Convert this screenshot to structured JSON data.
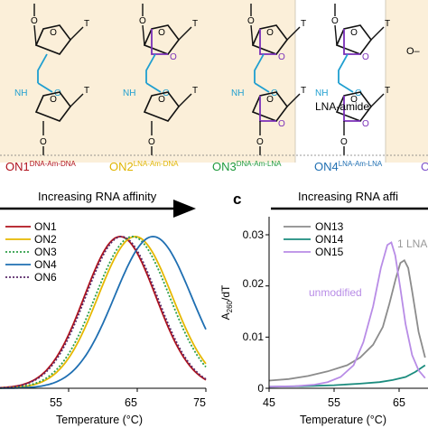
{
  "structures": {
    "base_label": "T",
    "nh": "NH",
    "o": "O",
    "lna_amide": "LNA-amide",
    "extra_fragment": "O–",
    "labels": [
      {
        "prefix": "ON1",
        "sup": "DNA-Am-DNA",
        "color": "#b0121c"
      },
      {
        "prefix": "ON2",
        "sup": "LNA-Am-DNA",
        "color": "#e0b400"
      },
      {
        "prefix": "ON3",
        "sup": "DNA-Am-LNA",
        "color": "#1f9a3c"
      },
      {
        "prefix": "ON4",
        "sup": "LNA-Am-LNA",
        "color": "#1f6fb2"
      },
      {
        "prefix": "O",
        "sup": "",
        "color": "#7b4fc9"
      }
    ],
    "colors": {
      "linker": "#1f9fd0",
      "lna_bridge": "#7a2fb8",
      "panel_bg": "#fbefd9"
    }
  },
  "panel_b": {
    "arrow_text": "Increasing RNA affinity"
  },
  "panel_c": {
    "letter": "c",
    "arrow_text": "Increasing RNA affi",
    "annotation_1lna": "1 LNA",
    "annotation_unmodified": "unmodified"
  },
  "chart_data": [
    {
      "type": "line",
      "panel": "b",
      "xlabel": "Temperature (°C)",
      "ylabel": "",
      "xlim": [
        45,
        75
      ],
      "xticks": [
        "55",
        "65",
        "75"
      ],
      "series": [
        {
          "name": "ON1",
          "color": "#b0121c",
          "dash": "",
          "peak_x": 62.5,
          "width": 5.2,
          "peak": 1.0
        },
        {
          "name": "ON2",
          "color": "#e6b800",
          "dash": "",
          "peak_x": 64.7,
          "width": 5.4,
          "peak": 1.0
        },
        {
          "name": "ON3",
          "color": "#2e9e48",
          "dash": "2,2",
          "peak_x": 64.3,
          "width": 5.4,
          "peak": 1.0
        },
        {
          "name": "ON4",
          "color": "#1f6fb2",
          "dash": "",
          "peak_x": 67.3,
          "width": 5.6,
          "peak": 1.0
        },
        {
          "name": "ON6",
          "color": "#5a2a6a",
          "dash": "2,2",
          "peak_x": 62.7,
          "width": 5.2,
          "peak": 1.0
        }
      ]
    },
    {
      "type": "line",
      "panel": "c",
      "xlabel": "Temperature (°C)",
      "ylabel": "A260/dT",
      "xlim": [
        45,
        69
      ],
      "ylim": [
        0,
        0.032
      ],
      "xticks": [
        "45",
        "55",
        "65"
      ],
      "yticks": [
        "0",
        "0.01",
        "0.02",
        "0.03"
      ],
      "series": [
        {
          "name": "ON13",
          "color": "#8c8c8c",
          "points": [
            [
              45,
              0.0015
            ],
            [
              48,
              0.0018
            ],
            [
              51,
              0.0024
            ],
            [
              54,
              0.0033
            ],
            [
              57,
              0.0045
            ],
            [
              59,
              0.006
            ],
            [
              61,
              0.0085
            ],
            [
              62.5,
              0.012
            ],
            [
              63.5,
              0.0165
            ],
            [
              64.5,
              0.0215
            ],
            [
              65.2,
              0.0245
            ],
            [
              65.8,
              0.025
            ],
            [
              66.4,
              0.0235
            ],
            [
              67,
              0.019
            ],
            [
              68,
              0.011
            ],
            [
              69,
              0.006
            ]
          ]
        },
        {
          "name": "ON14",
          "color": "#1b8c7e",
          "points": [
            [
              45,
              0.0003
            ],
            [
              50,
              0.0004
            ],
            [
              55,
              0.0006
            ],
            [
              59,
              0.0009
            ],
            [
              62,
              0.0012
            ],
            [
              64,
              0.0016
            ],
            [
              66,
              0.0022
            ],
            [
              67.5,
              0.0032
            ],
            [
              69,
              0.0045
            ]
          ]
        },
        {
          "name": "ON15",
          "color": "#b88ce6",
          "points": [
            [
              45,
              0.0003
            ],
            [
              49,
              0.0004
            ],
            [
              52,
              0.0007
            ],
            [
              54,
              0.0012
            ],
            [
              56,
              0.0022
            ],
            [
              58,
              0.0045
            ],
            [
              59.5,
              0.009
            ],
            [
              61,
              0.016
            ],
            [
              62.2,
              0.0235
            ],
            [
              63.2,
              0.028
            ],
            [
              63.8,
              0.0285
            ],
            [
              64.4,
              0.026
            ],
            [
              65.2,
              0.0195
            ],
            [
              66,
              0.0125
            ],
            [
              67,
              0.0065
            ],
            [
              68,
              0.0035
            ],
            [
              69,
              0.002
            ]
          ]
        }
      ]
    }
  ]
}
